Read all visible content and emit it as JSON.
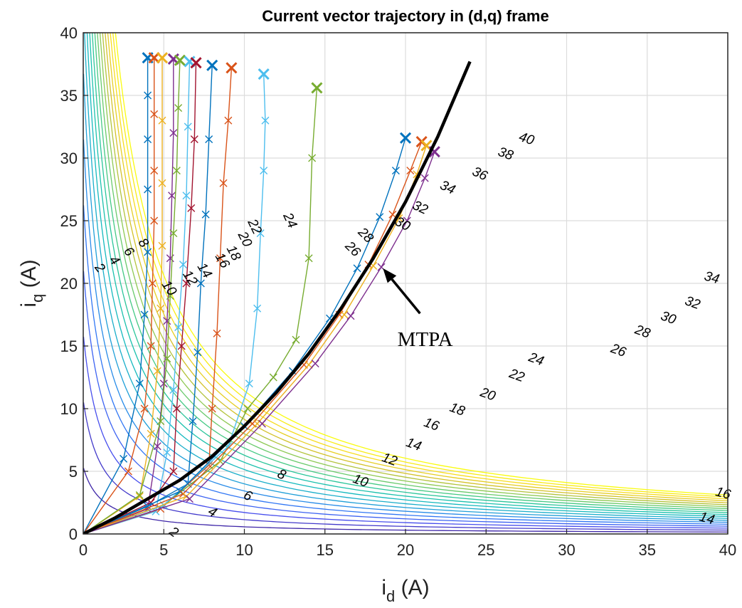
{
  "chart_data": {
    "type": "line",
    "title": "Current vector trajectory in (d,q) frame",
    "xlabel": {
      "main": "i",
      "sub": "d",
      "unit": " (A)"
    },
    "ylabel": {
      "main": "i",
      "sub": "q",
      "unit": " (A)"
    },
    "xlim": [
      0,
      40
    ],
    "ylim": [
      0,
      40
    ],
    "xticks": [
      "0",
      "5",
      "10",
      "15",
      "20",
      "25",
      "30",
      "35",
      "40"
    ],
    "yticks": [
      "0",
      "5",
      "10",
      "15",
      "20",
      "25",
      "30",
      "35",
      "40"
    ],
    "grid": true,
    "colormap": [
      "#3e26a8",
      "#4850f1",
      "#2e7cf4",
      "#1da6d3",
      "#12beb8",
      "#33c88f",
      "#82cb5c",
      "#cfbe2a",
      "#f7da1f",
      "#f9fb0e"
    ],
    "contour_levels": [
      2,
      4,
      6,
      8,
      10,
      12,
      14,
      16,
      18,
      20,
      22,
      24,
      26,
      28,
      30,
      32,
      34,
      36,
      38,
      40
    ],
    "contour_labels": [
      {
        "text": "2",
        "x": 1.0,
        "y": 21.2,
        "rot": 52
      },
      {
        "text": "4",
        "x": 1.9,
        "y": 21.8,
        "rot": 52
      },
      {
        "text": "6",
        "x": 2.8,
        "y": 22.5,
        "rot": 52
      },
      {
        "text": "8",
        "x": 3.7,
        "y": 23.2,
        "rot": 52
      },
      {
        "text": "10",
        "x": 5.3,
        "y": 19.6,
        "rot": 55
      },
      {
        "text": "12",
        "x": 6.6,
        "y": 20.4,
        "rot": 57
      },
      {
        "text": "14",
        "x": 7.5,
        "y": 21.0,
        "rot": 58
      },
      {
        "text": "16",
        "x": 8.6,
        "y": 21.8,
        "rot": 60
      },
      {
        "text": "18",
        "x": 9.3,
        "y": 22.4,
        "rot": 62
      },
      {
        "text": "20",
        "x": 10.0,
        "y": 23.5,
        "rot": 63
      },
      {
        "text": "22",
        "x": 10.6,
        "y": 24.5,
        "rot": 64
      },
      {
        "text": "24",
        "x": 12.8,
        "y": 25.0,
        "rot": 65
      },
      {
        "text": "26",
        "x": 16.7,
        "y": 22.7,
        "rot": 45
      },
      {
        "text": "28",
        "x": 17.5,
        "y": 23.8,
        "rot": 45
      },
      {
        "text": "30",
        "x": 19.8,
        "y": 24.7,
        "rot": 28
      },
      {
        "text": "32",
        "x": 20.9,
        "y": 26.0,
        "rot": 25
      },
      {
        "text": "34",
        "x": 22.6,
        "y": 27.6,
        "rot": 25
      },
      {
        "text": "36",
        "x": 24.6,
        "y": 28.7,
        "rot": 25
      },
      {
        "text": "38",
        "x": 26.2,
        "y": 30.3,
        "rot": 20
      },
      {
        "text": "40",
        "x": 27.5,
        "y": 31.5,
        "rot": 18
      },
      {
        "text": "2",
        "x": 5.6,
        "y": 0.1,
        "rot": 35
      },
      {
        "text": "4",
        "x": 8.0,
        "y": 1.7,
        "rot": 30
      },
      {
        "text": "6",
        "x": 10.2,
        "y": 3.0,
        "rot": 25
      },
      {
        "text": "8",
        "x": 12.3,
        "y": 4.7,
        "rot": 25
      },
      {
        "text": "10",
        "x": 17.2,
        "y": 4.2,
        "rot": 20
      },
      {
        "text": "12",
        "x": 19.0,
        "y": 5.9,
        "rot": 20
      },
      {
        "text": "14",
        "x": 20.5,
        "y": 7.1,
        "rot": 20
      },
      {
        "text": "16",
        "x": 21.6,
        "y": 8.7,
        "rot": 20
      },
      {
        "text": "18",
        "x": 23.2,
        "y": 9.9,
        "rot": 20
      },
      {
        "text": "20",
        "x": 25.1,
        "y": 11.1,
        "rot": 20
      },
      {
        "text": "22",
        "x": 26.9,
        "y": 12.6,
        "rot": 20
      },
      {
        "text": "24",
        "x": 28.1,
        "y": 13.9,
        "rot": 20
      },
      {
        "text": "26",
        "x": 33.2,
        "y": 14.6,
        "rot": 20
      },
      {
        "text": "28",
        "x": 34.7,
        "y": 16.1,
        "rot": 20
      },
      {
        "text": "30",
        "x": 36.3,
        "y": 17.2,
        "rot": 20
      },
      {
        "text": "32",
        "x": 37.8,
        "y": 18.4,
        "rot": 20
      },
      {
        "text": "34",
        "x": 39.0,
        "y": 20.4,
        "rot": 15
      },
      {
        "text": "14",
        "x": 38.7,
        "y": 1.2,
        "rot": 15
      },
      {
        "text": "16",
        "x": 39.7,
        "y": 3.2,
        "rot": 15
      }
    ],
    "mtpa": {
      "label": "MTPA",
      "x": [
        0,
        2,
        4,
        6,
        8,
        10,
        12,
        14,
        16,
        18,
        20,
        22,
        24
      ],
      "y": [
        0,
        1.3,
        2.8,
        4.3,
        6.2,
        8.6,
        11.3,
        14.4,
        18.0,
        22.0,
        26.5,
        31.7,
        37.7
      ]
    },
    "annotation": {
      "text": "MTPA",
      "x": 19.5,
      "y": 15.0,
      "arrow_from": [
        20.9,
        17.6
      ],
      "arrow_to": [
        18.6,
        21.2
      ]
    },
    "series": [
      {
        "color": "#0072bd",
        "x": [
          0,
          2.5,
          3.5,
          3.8,
          4.0,
          4.0,
          4.0,
          4.0,
          4.0
        ],
        "y": [
          0,
          6.0,
          12.0,
          17.5,
          22.5,
          27.5,
          31.5,
          35.0,
          38.0
        ]
      },
      {
        "color": "#d95319",
        "x": [
          0,
          2.8,
          3.8,
          4.2,
          4.3,
          4.4,
          4.4,
          4.4,
          4.4
        ],
        "y": [
          0,
          5.0,
          10.0,
          15.0,
          20.0,
          25.0,
          29.0,
          33.5,
          38.0
        ]
      },
      {
        "color": "#edb120",
        "x": [
          0,
          3.5,
          4.2,
          4.6,
          4.8,
          4.9,
          4.9,
          4.9,
          4.9
        ],
        "y": [
          0,
          3.0,
          8.0,
          13.0,
          18.0,
          23.0,
          28.0,
          33.0,
          38.0
        ]
      },
      {
        "color": "#7e2f8e",
        "x": [
          0,
          4.0,
          4.6,
          5.0,
          5.2,
          5.4,
          5.5,
          5.6,
          5.6
        ],
        "y": [
          0,
          2.0,
          7.0,
          12.0,
          17.0,
          22.0,
          27.0,
          32.0,
          37.9
        ]
      },
      {
        "color": "#77ac30",
        "x": [
          0,
          3.5,
          4.8,
          5.2,
          5.4,
          5.6,
          5.8,
          5.9,
          6.0
        ],
        "y": [
          0,
          3.1,
          9.0,
          14.0,
          19.0,
          24.0,
          29.0,
          34.0,
          37.8
        ]
      },
      {
        "color": "#4dbeee",
        "x": [
          0,
          4.5,
          5.2,
          5.6,
          5.9,
          6.2,
          6.4,
          6.5,
          6.6
        ],
        "y": [
          0,
          1.8,
          6.5,
          11.5,
          16.5,
          21.5,
          27.0,
          32.5,
          37.7
        ]
      },
      {
        "color": "#a2142f",
        "x": [
          0,
          4.2,
          5.6,
          5.8,
          6.1,
          6.4,
          6.7,
          6.9,
          7.0
        ],
        "y": [
          0,
          2.5,
          5.0,
          10.0,
          15.0,
          20.0,
          26.0,
          31.5,
          37.6
        ]
      },
      {
        "color": "#0072bd",
        "x": [
          0,
          4.0,
          6.5,
          6.8,
          7.1,
          7.3,
          7.6,
          7.8,
          8.0
        ],
        "y": [
          0,
          2.2,
          4.0,
          9.0,
          14.5,
          20.0,
          25.5,
          31.5,
          37.4
        ]
      },
      {
        "color": "#d95319",
        "x": [
          0,
          4.8,
          7.8,
          8.0,
          8.3,
          8.5,
          8.7,
          9.0,
          9.2
        ],
        "y": [
          0,
          2.0,
          5.5,
          10.0,
          16.0,
          22.0,
          28.0,
          33.0,
          37.2
        ]
      },
      {
        "color": "#77ac30",
        "x": [
          0,
          5.0,
          8.5,
          10.2,
          11.8,
          13.2,
          14.0,
          14.2,
          14.5
        ],
        "y": [
          0,
          2.3,
          5.8,
          10.0,
          12.5,
          15.5,
          22.0,
          30.0,
          35.6
        ]
      },
      {
        "color": "#4dbeee",
        "x": [
          0,
          5.0,
          9.0,
          10.3,
          10.8,
          11.0,
          11.2,
          11.3,
          11.2
        ],
        "y": [
          0,
          2.3,
          7.0,
          12.0,
          18.0,
          24.0,
          29.0,
          33.0,
          36.7
        ]
      },
      {
        "color": "#0072bd",
        "x": [
          0,
          6.0,
          10.0,
          13.0,
          15.3,
          17.0,
          18.4,
          19.4,
          20.0
        ],
        "y": [
          0,
          3.4,
          8.6,
          13.0,
          17.2,
          21.2,
          25.3,
          29.0,
          31.6
        ]
      },
      {
        "color": "#d95319",
        "x": [
          0,
          6.2,
          10.5,
          13.7,
          15.9,
          17.7,
          19.2,
          20.3,
          21.0
        ],
        "y": [
          0,
          3.2,
          8.8,
          13.5,
          17.5,
          21.5,
          25.5,
          29.0,
          31.3
        ]
      },
      {
        "color": "#edb120",
        "x": [
          0,
          6.4,
          10.8,
          14.0,
          16.2,
          18.0,
          19.6,
          20.7,
          21.3
        ],
        "y": [
          0,
          3.0,
          8.8,
          13.5,
          17.5,
          21.4,
          25.2,
          28.7,
          31.0
        ]
      },
      {
        "color": "#7e2f8e",
        "x": [
          0,
          6.6,
          11.1,
          14.4,
          16.6,
          18.5,
          20.1,
          21.2,
          21.8
        ],
        "y": [
          0,
          2.8,
          8.8,
          13.6,
          17.4,
          21.3,
          25.0,
          28.4,
          30.5
        ]
      }
    ]
  }
}
